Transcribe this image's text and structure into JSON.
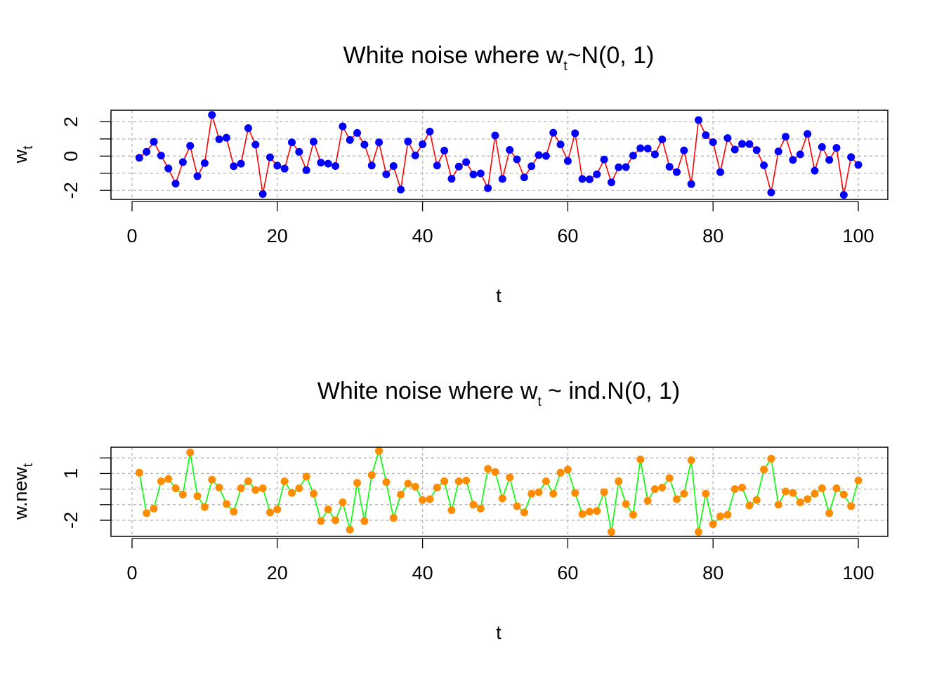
{
  "chart_data": [
    {
      "type": "line",
      "title": "White noise where w",
      "title_subscript": "t",
      "title_suffix": "~N(0, 1)",
      "xlabel": "t",
      "ylabel": "w",
      "ylabel_subscript": "t",
      "xlim": [
        1,
        100
      ],
      "ylim": [
        -2.4,
        2.55
      ],
      "x_ticks": [
        0,
        20,
        40,
        60,
        80,
        100
      ],
      "x_tick_labels": [
        "0",
        "20",
        "40",
        "60",
        "80",
        "100"
      ],
      "y_ticks": [
        -2,
        -1,
        0,
        1,
        2
      ],
      "y_tick_labels": [
        "-2",
        "",
        "0",
        "",
        "2"
      ],
      "grid": true,
      "colors": {
        "line": "#ff0000",
        "points": "#0000ff"
      },
      "x": [
        1,
        2,
        3,
        4,
        5,
        6,
        7,
        8,
        9,
        10,
        11,
        12,
        13,
        14,
        15,
        16,
        17,
        18,
        19,
        20,
        21,
        22,
        23,
        24,
        25,
        26,
        27,
        28,
        29,
        30,
        31,
        32,
        33,
        34,
        35,
        36,
        37,
        38,
        39,
        40,
        41,
        42,
        43,
        44,
        45,
        46,
        47,
        48,
        49,
        50,
        51,
        52,
        53,
        54,
        55,
        56,
        57,
        58,
        59,
        60,
        61,
        62,
        63,
        64,
        65,
        66,
        67,
        68,
        69,
        70,
        71,
        72,
        73,
        74,
        75,
        76,
        77,
        78,
        79,
        80,
        81,
        82,
        83,
        84,
        85,
        86,
        87,
        88,
        89,
        90,
        91,
        92,
        93,
        94,
        95,
        96,
        97,
        98,
        99,
        100
      ],
      "series": [
        {
          "values": [
            -0.1,
            0.25,
            0.83,
            0.03,
            -0.72,
            -1.6,
            -0.35,
            0.6,
            -1.17,
            -0.41,
            2.4,
            0.98,
            1.07,
            -0.59,
            -0.44,
            1.63,
            0.67,
            -2.21,
            -0.07,
            -0.56,
            -0.73,
            0.8,
            0.25,
            -0.82,
            0.84,
            -0.38,
            -0.44,
            -0.58,
            1.73,
            0.94,
            1.35,
            0.67,
            -0.55,
            0.8,
            -1.06,
            -0.58,
            -1.95,
            0.85,
            0.04,
            0.69,
            1.43,
            -0.55,
            0.32,
            -1.32,
            -0.61,
            -0.35,
            -1.07,
            -1.01,
            -1.87,
            1.2,
            -1.33,
            0.36,
            -0.19,
            -1.24,
            -0.59,
            0.06,
            0.01,
            1.36,
            0.68,
            -0.29,
            1.33,
            -1.33,
            -1.35,
            -1.06,
            -0.2,
            -1.53,
            -0.65,
            -0.64,
            0.03,
            0.46,
            0.44,
            0.1,
            0.97,
            -0.62,
            -0.93,
            0.33,
            -1.63,
            2.1,
            1.22,
            0.81,
            -0.93,
            1.05,
            0.38,
            0.71,
            0.7,
            0.35,
            -0.54,
            -2.12,
            0.27,
            1.13,
            -0.22,
            0.1,
            1.29,
            -0.85,
            0.53,
            -0.22,
            0.48,
            -2.26,
            -0.06,
            -0.51
          ]
        }
      ]
    },
    {
      "type": "line",
      "title": "White noise where w",
      "title_subscript": "t",
      "title_suffix": " ~ ind.N(0, 1)",
      "xlabel": "t",
      "ylabel": "w.new",
      "ylabel_subscript": "t",
      "xlim": [
        1,
        100
      ],
      "ylim": [
        -2.9,
        2.55
      ],
      "x_ticks": [
        0,
        20,
        40,
        60,
        80,
        100
      ],
      "x_tick_labels": [
        "0",
        "20",
        "40",
        "60",
        "80",
        "100"
      ],
      "y_ticks": [
        -2,
        -1,
        0,
        1,
        2
      ],
      "y_tick_labels": [
        "-2",
        "",
        "",
        "1",
        ""
      ],
      "grid": true,
      "colors": {
        "line": "#00ff00",
        "points": "#ff8c00"
      },
      "x": [
        1,
        2,
        3,
        4,
        5,
        6,
        7,
        8,
        9,
        10,
        11,
        12,
        13,
        14,
        15,
        16,
        17,
        18,
        19,
        20,
        21,
        22,
        23,
        24,
        25,
        26,
        27,
        28,
        29,
        30,
        31,
        32,
        33,
        34,
        35,
        36,
        37,
        38,
        39,
        40,
        41,
        42,
        43,
        44,
        45,
        46,
        47,
        48,
        49,
        50,
        51,
        52,
        53,
        54,
        55,
        56,
        57,
        58,
        59,
        60,
        61,
        62,
        63,
        64,
        65,
        66,
        67,
        68,
        69,
        70,
        71,
        72,
        73,
        74,
        75,
        76,
        77,
        78,
        79,
        80,
        81,
        82,
        83,
        84,
        85,
        86,
        87,
        88,
        89,
        90,
        91,
        92,
        93,
        94,
        95,
        96,
        97,
        98,
        99,
        100
      ],
      "series": [
        {
          "values": [
            1.05,
            -1.55,
            -1.25,
            0.5,
            0.65,
            0.05,
            -0.35,
            2.35,
            -0.45,
            -1.15,
            0.6,
            0.1,
            -0.95,
            -1.45,
            0.05,
            0.5,
            -0.05,
            0.05,
            -1.5,
            -1.3,
            0.5,
            -0.25,
            0.05,
            0.8,
            -0.3,
            -2.05,
            -1.3,
            -2.0,
            -0.85,
            -2.6,
            0.4,
            -2.05,
            0.9,
            2.45,
            0.45,
            -1.85,
            -0.35,
            0.35,
            0.15,
            -0.7,
            -0.65,
            0.1,
            0.5,
            -1.35,
            0.5,
            0.55,
            -1.0,
            -1.25,
            1.3,
            1.1,
            -0.6,
            0.75,
            -1.1,
            -1.5,
            -0.3,
            -0.2,
            0.5,
            -0.3,
            1.05,
            1.25,
            -0.25,
            -1.6,
            -1.45,
            -1.4,
            -0.2,
            -2.75,
            0.5,
            -0.95,
            -1.65,
            1.9,
            -0.75,
            0.0,
            0.1,
            0.7,
            -0.65,
            -0.3,
            1.85,
            -2.75,
            -0.3,
            -2.25,
            -1.75,
            -1.65,
            0.0,
            0.1,
            -1.05,
            -0.7,
            1.25,
            1.95,
            -1.0,
            -0.15,
            -0.25,
            -0.85,
            -0.65,
            -0.3,
            0.05,
            -1.55,
            0.05,
            -0.35,
            -1.1,
            0.55
          ]
        }
      ]
    }
  ]
}
